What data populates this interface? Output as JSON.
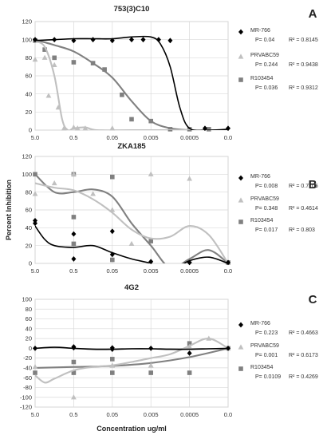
{
  "chart_data": [
    {
      "type": "scatter",
      "title": "753(3)C10",
      "panel_letter": "A",
      "x_ticks": [
        "5.0",
        "0.5",
        "0.05",
        "0.005",
        "0.0005",
        "0.0"
      ],
      "ylim": [
        0,
        120
      ],
      "y_ticks": [
        0,
        20,
        40,
        60,
        80,
        100,
        120
      ],
      "ylabel": "",
      "xlabel": "",
      "grid": true,
      "legend_position": "right",
      "series": [
        {
          "name": "MR-766",
          "marker": "diamond",
          "color": "#000000",
          "p": "P= 0.04",
          "r2": "R² = 0.8145",
          "points": [
            [
              0.0,
              100
            ],
            [
              0.5,
              100
            ],
            [
              1.0,
              99
            ],
            [
              1.5,
              100
            ],
            [
              2.0,
              99
            ],
            [
              2.5,
              100
            ],
            [
              2.8,
              100
            ],
            [
              3.2,
              100
            ],
            [
              3.5,
              99
            ],
            [
              4.4,
              2
            ],
            [
              5.0,
              2
            ]
          ],
          "curve": [
            [
              0.0,
              99
            ],
            [
              0.5,
              100
            ],
            [
              1.0,
              101
            ],
            [
              1.5,
              101
            ],
            [
              2.0,
              101
            ],
            [
              2.5,
              103
            ],
            [
              3.0,
              103
            ],
            [
              3.25,
              95
            ],
            [
              3.5,
              70
            ],
            [
              3.75,
              25
            ],
            [
              4.0,
              2
            ],
            [
              4.5,
              0
            ],
            [
              5.0,
              1
            ]
          ]
        },
        {
          "name": "PRVABC59",
          "marker": "triangle",
          "color": "#c0c0c0",
          "p": "P= 0.244",
          "r2": "R² = 0.9438",
          "points": [
            [
              0.0,
              78
            ],
            [
              0.25,
              80
            ],
            [
              0.35,
              38
            ],
            [
              0.5,
              72
            ],
            [
              0.6,
              25
            ],
            [
              0.75,
              2
            ],
            [
              1.0,
              3
            ],
            [
              1.1,
              2
            ],
            [
              1.3,
              2
            ],
            [
              2.0,
              2
            ]
          ],
          "curve": [
            [
              0.0,
              98
            ],
            [
              0.25,
              92
            ],
            [
              0.5,
              60
            ],
            [
              0.7,
              12
            ],
            [
              0.85,
              0
            ],
            [
              1.0,
              2
            ],
            [
              1.3,
              3
            ],
            [
              1.6,
              0
            ],
            [
              2.5,
              0
            ],
            [
              4.0,
              0
            ],
            [
              5.0,
              0
            ]
          ]
        },
        {
          "name": "R103454",
          "marker": "square",
          "color": "#808080",
          "p": "P= 0.036",
          "r2": "R² = 0.9312",
          "points": [
            [
              0.0,
              99
            ],
            [
              0.25,
              89
            ],
            [
              0.5,
              80
            ],
            [
              1.0,
              75
            ],
            [
              1.5,
              74
            ],
            [
              1.8,
              67
            ],
            [
              2.25,
              39
            ],
            [
              2.5,
              12
            ],
            [
              3.0,
              10
            ],
            [
              3.5,
              1
            ],
            [
              4.0,
              1
            ],
            [
              4.5,
              1
            ]
          ],
          "curve": [
            [
              0.0,
              100
            ],
            [
              0.5,
              94
            ],
            [
              1.0,
              87
            ],
            [
              1.5,
              74
            ],
            [
              2.0,
              58
            ],
            [
              2.5,
              32
            ],
            [
              3.0,
              10
            ],
            [
              3.5,
              2
            ],
            [
              4.0,
              0
            ],
            [
              4.5,
              0
            ],
            [
              5.0,
              0
            ]
          ]
        }
      ]
    },
    {
      "type": "scatter",
      "title": "ZKA185",
      "panel_letter": "B",
      "x_ticks": [
        "5.0",
        "0.5",
        "0.05",
        "0.005",
        "0.0005",
        "0.0"
      ],
      "ylim": [
        0,
        120
      ],
      "y_ticks": [
        0,
        20,
        40,
        60,
        80,
        100,
        120
      ],
      "ylabel": "Percent Inhibition",
      "xlabel": "",
      "grid": true,
      "legend_position": "right",
      "series": [
        {
          "name": "MR-766",
          "marker": "diamond",
          "color": "#000000",
          "p": "P= 0.008",
          "r2": "R² = 0.7705",
          "points": [
            [
              0.0,
              48
            ],
            [
              0.0,
              45
            ],
            [
              1.0,
              33
            ],
            [
              1.0,
              5
            ],
            [
              2.0,
              36
            ],
            [
              2.0,
              10
            ],
            [
              3.0,
              2
            ],
            [
              4.0,
              1
            ],
            [
              4.0,
              1
            ],
            [
              5.0,
              1
            ]
          ],
          "curve": [
            [
              0.0,
              42
            ],
            [
              0.25,
              27
            ],
            [
              0.5,
              20
            ],
            [
              1.0,
              18
            ],
            [
              1.5,
              20
            ],
            [
              2.0,
              12
            ],
            [
              2.5,
              5
            ],
            [
              3.0,
              0
            ],
            [
              3.5,
              -8
            ],
            [
              4.0,
              3
            ],
            [
              4.5,
              7
            ],
            [
              5.0,
              0
            ]
          ]
        },
        {
          "name": "PRVABC59",
          "marker": "triangle",
          "color": "#c0c0c0",
          "p": "P= 0.348",
          "r2": "R² = 0.4614",
          "points": [
            [
              0.0,
              78
            ],
            [
              0.5,
              90
            ],
            [
              1.0,
              100
            ],
            [
              1.5,
              78
            ],
            [
              2.0,
              60
            ],
            [
              2.5,
              22
            ],
            [
              3.0,
              100
            ],
            [
              4.0,
              95
            ]
          ],
          "curve": [
            [
              0.0,
              90
            ],
            [
              0.5,
              85
            ],
            [
              1.0,
              82
            ],
            [
              1.5,
              72
            ],
            [
              2.0,
              57
            ],
            [
              2.5,
              38
            ],
            [
              3.0,
              28
            ],
            [
              3.5,
              30
            ],
            [
              4.0,
              42
            ],
            [
              4.5,
              32
            ],
            [
              5.0,
              0
            ]
          ]
        },
        {
          "name": "R103454",
          "marker": "square",
          "color": "#808080",
          "p": "P= 0.017",
          "r2": "R² = 0.803",
          "points": [
            [
              0.0,
              100
            ],
            [
              1.0,
              100
            ],
            [
              1.0,
              52
            ],
            [
              1.0,
              22
            ],
            [
              2.0,
              97
            ],
            [
              2.0,
              4
            ],
            [
              3.0,
              25
            ],
            [
              5.0,
              1
            ]
          ],
          "curve": [
            [
              0.0,
              100
            ],
            [
              0.5,
              80
            ],
            [
              1.0,
              80
            ],
            [
              1.5,
              83
            ],
            [
              2.0,
              75
            ],
            [
              2.5,
              45
            ],
            [
              3.0,
              20
            ],
            [
              3.5,
              -5
            ],
            [
              4.0,
              5
            ],
            [
              4.5,
              15
            ],
            [
              5.0,
              0
            ]
          ]
        }
      ]
    },
    {
      "type": "scatter",
      "title": "4G2",
      "panel_letter": "C",
      "x_ticks": [
        "5.0",
        "0.5",
        "0.05",
        "0.005",
        "0.0005",
        "0.0"
      ],
      "ylim": [
        -120,
        100
      ],
      "y_ticks": [
        -120,
        -100,
        -80,
        -60,
        -40,
        -20,
        0,
        20,
        40,
        60,
        80,
        100
      ],
      "ylabel": "",
      "xlabel": "Concentration ug/ml",
      "grid": true,
      "legend_position": "right",
      "series": [
        {
          "name": "MR-766",
          "marker": "diamond",
          "color": "#000000",
          "p": "P= 0.223",
          "r2": "R² = 0.4663",
          "points": [
            [
              0.0,
              0
            ],
            [
              1.0,
              1
            ],
            [
              1.0,
              3
            ],
            [
              2.0,
              -2
            ],
            [
              2.0,
              1
            ],
            [
              3.0,
              0
            ],
            [
              4.0,
              -10
            ],
            [
              5.0,
              0
            ]
          ],
          "curve": [
            [
              0.0,
              0
            ],
            [
              0.5,
              2
            ],
            [
              1.0,
              0
            ],
            [
              1.5,
              -2
            ],
            [
              2.0,
              -2
            ],
            [
              2.5,
              -1
            ],
            [
              3.0,
              -1
            ],
            [
              3.5,
              -2
            ],
            [
              4.0,
              -2
            ],
            [
              4.5,
              -1
            ],
            [
              5.0,
              0
            ]
          ]
        },
        {
          "name": "PRVABC59",
          "marker": "triangle",
          "color": "#c0c0c0",
          "p": "P= 0.001",
          "r2": "R² = 0.6173",
          "points": [
            [
              0.0,
              -38
            ],
            [
              1.0,
              -100
            ],
            [
              2.0,
              -35
            ],
            [
              3.0,
              -35
            ],
            [
              4.0,
              3
            ],
            [
              4.5,
              20
            ],
            [
              5.0,
              0
            ]
          ],
          "curve": [
            [
              0.0,
              -55
            ],
            [
              0.25,
              -70
            ],
            [
              0.5,
              -62
            ],
            [
              1.0,
              -45
            ],
            [
              1.5,
              -38
            ],
            [
              2.0,
              -35
            ],
            [
              2.5,
              -28
            ],
            [
              3.0,
              -20
            ],
            [
              3.5,
              -12
            ],
            [
              4.0,
              5
            ],
            [
              4.5,
              20
            ],
            [
              5.0,
              0
            ]
          ]
        },
        {
          "name": "R103454",
          "marker": "square",
          "color": "#808080",
          "p": "P= 0.0109",
          "r2": "R² = 0.4269",
          "points": [
            [
              0.0,
              -50
            ],
            [
              1.0,
              -28
            ],
            [
              1.0,
              -50
            ],
            [
              2.0,
              -22
            ],
            [
              2.0,
              -50
            ],
            [
              3.0,
              -50
            ],
            [
              4.0,
              10
            ],
            [
              4.0,
              -50
            ],
            [
              5.0,
              0
            ]
          ],
          "curve": [
            [
              0.0,
              -40
            ],
            [
              1.0,
              -38
            ],
            [
              2.0,
              -36
            ],
            [
              3.0,
              -30
            ],
            [
              4.0,
              -18
            ],
            [
              5.0,
              0
            ]
          ]
        }
      ]
    }
  ]
}
